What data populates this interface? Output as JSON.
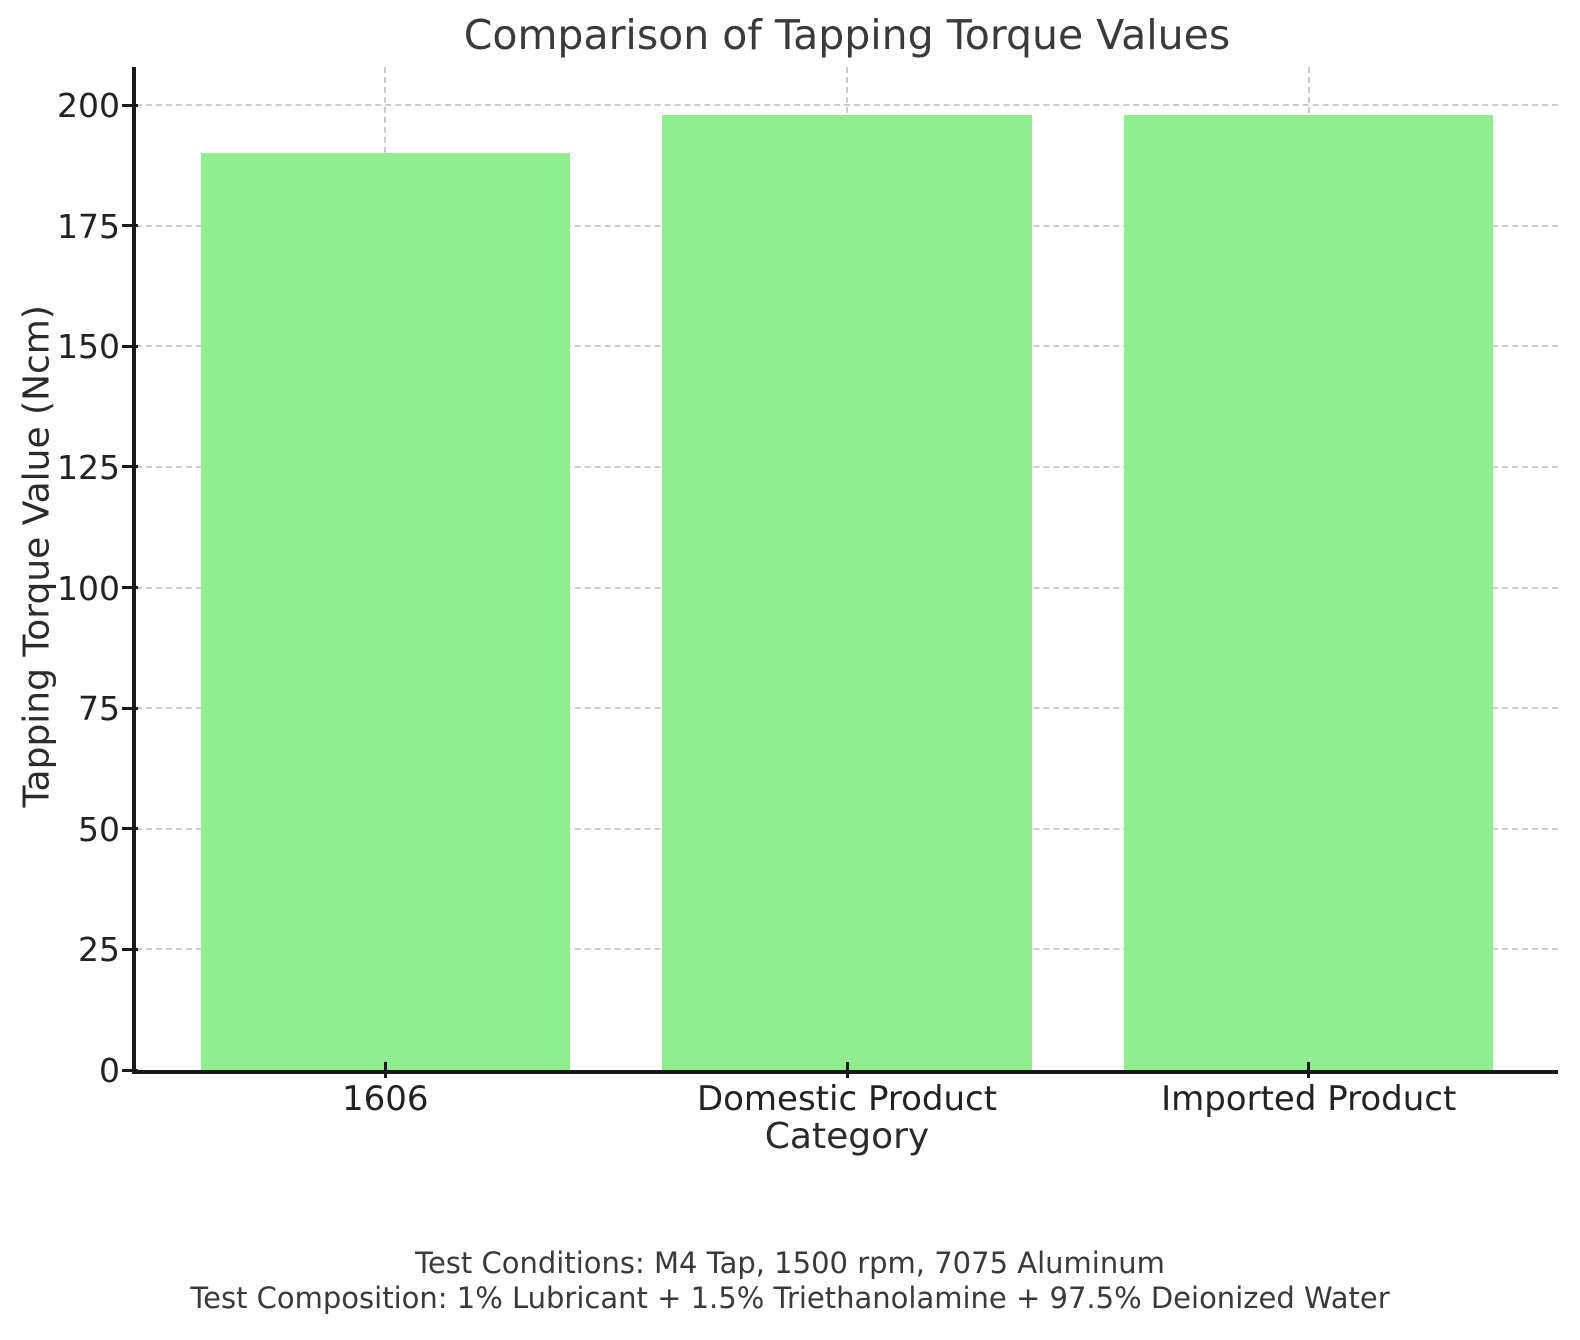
{
  "chart_data": {
    "type": "bar",
    "title": "Comparison of Tapping Torque Values",
    "categories": [
      "1606",
      "Domestic Product",
      "Imported Product"
    ],
    "values": [
      190,
      198,
      198
    ],
    "xlabel": "Category",
    "ylabel": "Tapping Torque Value (Ncm)",
    "ylim": [
      0,
      207.9
    ],
    "yticks": [
      0,
      25,
      50,
      75,
      100,
      125,
      150,
      175,
      200
    ],
    "bar_color": "#90ee90",
    "bar_width_fraction": 0.8,
    "grid": "dashed, horizontal and vertical, drawn under bars",
    "grid_color": "#cccccc",
    "legend": "none",
    "annotations": [
      "Test Conditions: M4 Tap, 1500 rpm, 7075 Aluminum",
      "Test Composition: 1% Lubricant + 1.5% Triethanolamine + 97.5% Deionized Water"
    ]
  },
  "footer": {
    "line1": "Test Conditions: M4 Tap, 1500 rpm, 7075 Aluminum",
    "line2": "Test Composition: 1% Lubricant + 1.5% Triethanolamine + 97.5% Deionized Water"
  }
}
